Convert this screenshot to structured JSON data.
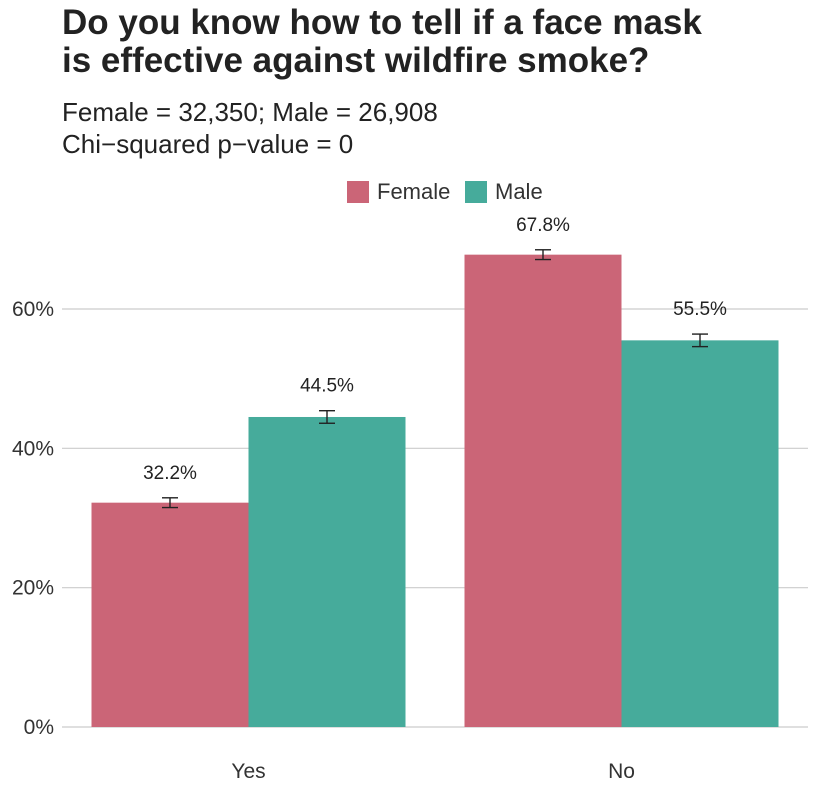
{
  "chart_data": {
    "type": "bar",
    "title_lines": [
      "Do you know how to tell if a face mask",
      "is effective against wildfire smoke?"
    ],
    "subtitle_lines": [
      "Female = 32,350; Male = 26,908",
      "Chi−squared p−value = 0"
    ],
    "categories": [
      "Yes",
      "No"
    ],
    "series": [
      {
        "name": "Female",
        "color": "#cb6577",
        "values": [
          32.2,
          67.8
        ],
        "labels": [
          "32.2%",
          "67.8%"
        ],
        "err": [
          0.7,
          0.7
        ]
      },
      {
        "name": "Male",
        "color": "#46ab9b",
        "values": [
          44.5,
          55.5
        ],
        "labels": [
          "44.5%",
          "55.5%"
        ],
        "err": [
          0.9,
          0.9
        ]
      }
    ],
    "ylim": [
      0,
      70
    ],
    "yticks": [
      0,
      20,
      40,
      60
    ],
    "ytick_labels": [
      "0%",
      "20%",
      "40%",
      "60%"
    ],
    "grid": true,
    "legend_position": "top"
  }
}
